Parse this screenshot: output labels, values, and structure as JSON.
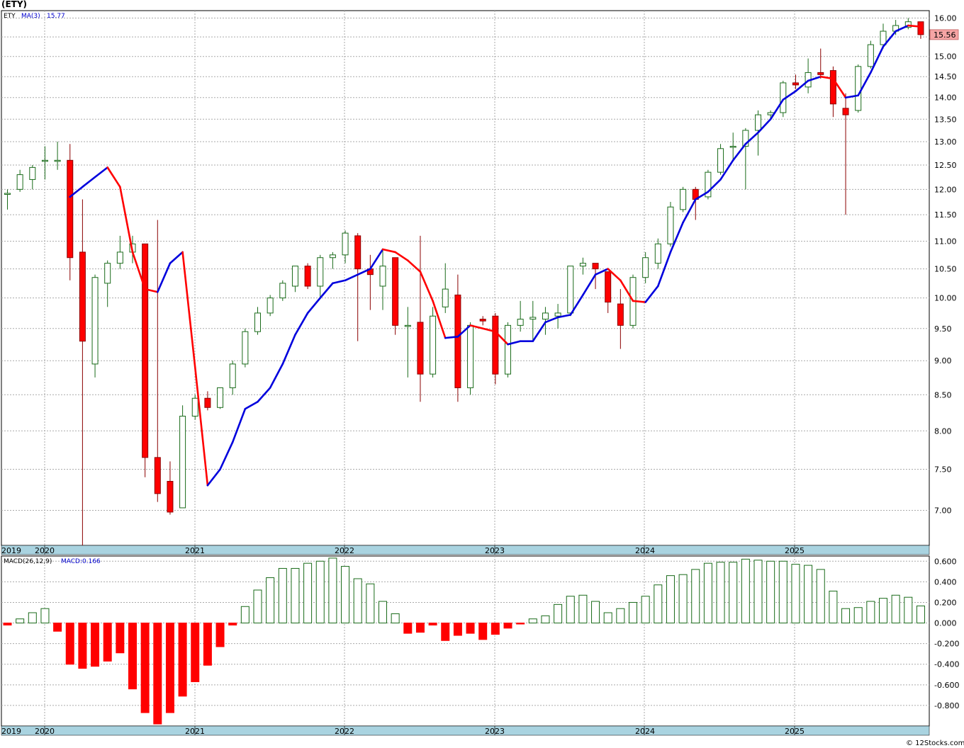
{
  "page": {
    "symbol_title": "(ETY)",
    "credit": "© 12Stocks.com"
  },
  "colors": {
    "up": "#1a6b1a",
    "down": "#ff0000",
    "ma_up": "#0000dd",
    "ma_down": "#ff0000",
    "axis_band": "#a9d3e0",
    "grid": "#aaaaaa",
    "last_price_tag": "#f6a5a5"
  },
  "chart_data": [
    {
      "type": "candlestick",
      "title": "",
      "symbol": "ETY",
      "overlay_label": "MA(3)",
      "overlay_value": "15.77",
      "last_price_label": "15.56",
      "y_scale": "log",
      "ylim": [
        6.6,
        16.2
      ],
      "y_ticks": [
        "7.00",
        "7.50",
        "8.00",
        "8.50",
        "9.00",
        "9.50",
        "10.00",
        "10.50",
        "11.00",
        "11.50",
        "12.00",
        "12.50",
        "13.00",
        "13.50",
        "14.00",
        "14.50",
        "15.00",
        "15.50",
        "16.00"
      ],
      "x_year_labels": [
        "2019",
        "2020",
        "2021",
        "2022",
        "2023",
        "2024",
        "2025"
      ],
      "grid": true,
      "series": [
        {
          "name": "ETY",
          "fields": [
            "open",
            "high",
            "low",
            "close"
          ],
          "values": [
            [
              11.9,
              12.0,
              11.6,
              11.92
            ],
            [
              12.0,
              12.4,
              11.95,
              12.3
            ],
            [
              12.2,
              12.5,
              12.0,
              12.45
            ],
            [
              12.6,
              12.9,
              12.2,
              12.6
            ],
            [
              12.6,
              13.0,
              12.4,
              12.6
            ],
            [
              12.6,
              12.95,
              10.3,
              10.7
            ],
            [
              10.8,
              11.8,
              6.6,
              9.3
            ],
            [
              8.95,
              10.4,
              8.75,
              10.35
            ],
            [
              10.25,
              10.65,
              9.85,
              10.6
            ],
            [
              10.6,
              11.1,
              10.5,
              10.8
            ],
            [
              10.8,
              11.1,
              10.6,
              10.95
            ],
            [
              10.95,
              10.95,
              7.4,
              7.65
            ],
            [
              7.65,
              11.4,
              7.1,
              7.2
            ],
            [
              7.35,
              7.6,
              6.95,
              6.98
            ],
            [
              7.03,
              8.35,
              7.03,
              8.2
            ],
            [
              8.2,
              8.5,
              8.15,
              8.45
            ],
            [
              8.45,
              8.55,
              8.28,
              8.32
            ],
            [
              8.32,
              8.6,
              8.3,
              8.6
            ],
            [
              8.6,
              9.0,
              8.5,
              8.95
            ],
            [
              8.95,
              9.5,
              8.9,
              9.45
            ],
            [
              9.45,
              9.85,
              9.4,
              9.75
            ],
            [
              9.75,
              10.05,
              9.7,
              10.0
            ],
            [
              10.0,
              10.3,
              9.95,
              10.25
            ],
            [
              10.2,
              10.55,
              10.1,
              10.55
            ],
            [
              10.55,
              10.6,
              10.15,
              10.2
            ],
            [
              10.2,
              10.75,
              10.0,
              10.7
            ],
            [
              10.7,
              10.8,
              10.5,
              10.75
            ],
            [
              10.75,
              11.2,
              10.6,
              11.15
            ],
            [
              11.1,
              11.15,
              9.3,
              10.5
            ],
            [
              10.5,
              10.75,
              9.8,
              10.4
            ],
            [
              10.2,
              10.85,
              9.8,
              10.55
            ],
            [
              10.7,
              10.7,
              9.4,
              9.55
            ],
            [
              9.55,
              9.85,
              8.75,
              9.55
            ],
            [
              9.6,
              11.1,
              8.4,
              8.8
            ],
            [
              8.8,
              9.85,
              8.75,
              9.7
            ],
            [
              9.85,
              10.6,
              9.75,
              10.15
            ],
            [
              10.05,
              10.4,
              8.4,
              8.6
            ],
            [
              8.6,
              9.6,
              8.5,
              9.55
            ],
            [
              9.65,
              9.7,
              9.55,
              9.62
            ],
            [
              9.7,
              9.75,
              8.65,
              8.8
            ],
            [
              8.8,
              9.6,
              8.75,
              9.55
            ],
            [
              9.55,
              9.95,
              9.45,
              9.65
            ],
            [
              9.65,
              9.95,
              9.3,
              9.68
            ],
            [
              9.65,
              9.85,
              9.4,
              9.75
            ],
            [
              9.7,
              9.9,
              9.5,
              9.75
            ],
            [
              9.75,
              10.55,
              9.7,
              10.55
            ],
            [
              10.55,
              10.7,
              10.4,
              10.6
            ],
            [
              10.6,
              10.6,
              10.15,
              10.5
            ],
            [
              10.45,
              10.45,
              9.75,
              9.93
            ],
            [
              9.9,
              10.15,
              9.18,
              9.55
            ],
            [
              9.55,
              10.4,
              9.5,
              10.35
            ],
            [
              10.35,
              10.8,
              10.25,
              10.7
            ],
            [
              10.6,
              11.05,
              10.5,
              10.95
            ],
            [
              10.95,
              11.75,
              10.9,
              11.65
            ],
            [
              11.6,
              12.05,
              11.55,
              12.0
            ],
            [
              12.0,
              12.05,
              11.4,
              11.8
            ],
            [
              11.85,
              12.4,
              11.8,
              12.35
            ],
            [
              12.35,
              12.95,
              12.3,
              12.85
            ],
            [
              12.9,
              13.2,
              12.6,
              12.9
            ],
            [
              12.9,
              13.3,
              12.0,
              13.25
            ],
            [
              13.25,
              13.7,
              12.7,
              13.6
            ],
            [
              13.6,
              13.7,
              13.5,
              13.65
            ],
            [
              13.65,
              14.4,
              13.55,
              14.35
            ],
            [
              14.35,
              14.55,
              14.2,
              14.3
            ],
            [
              14.25,
              14.95,
              14.1,
              14.6
            ],
            [
              14.6,
              15.2,
              14.45,
              14.55
            ],
            [
              14.65,
              14.75,
              13.55,
              13.85
            ],
            [
              13.75,
              14.1,
              11.5,
              13.6
            ],
            [
              13.7,
              14.8,
              13.65,
              14.75
            ],
            [
              14.75,
              15.4,
              14.7,
              15.3
            ],
            [
              15.3,
              15.85,
              15.2,
              15.65
            ],
            [
              15.65,
              15.95,
              15.55,
              15.8
            ],
            [
              15.75,
              16.0,
              15.7,
              15.9
            ],
            [
              15.9,
              15.9,
              15.45,
              15.56
            ]
          ]
        },
        {
          "name": "MA(3)",
          "values": [
            11.85,
            12.05,
            12.25,
            12.45,
            12.05,
            10.8,
            10.15,
            10.1,
            10.6,
            10.8,
            8.9,
            7.3,
            7.5,
            7.85,
            8.3,
            8.4,
            8.6,
            8.95,
            9.4,
            9.75,
            10.0,
            10.25,
            10.3,
            10.4,
            10.5,
            10.85,
            10.8,
            10.65,
            10.45,
            9.95,
            9.35,
            9.37,
            9.55,
            9.5,
            9.45,
            9.25,
            9.3,
            9.3,
            9.6,
            9.68,
            9.72,
            10.05,
            10.4,
            10.5,
            10.3,
            9.95,
            9.93,
            10.2,
            10.8,
            11.35,
            11.8,
            11.95,
            12.2,
            12.6,
            12.95,
            13.2,
            13.5,
            13.95,
            14.15,
            14.4,
            14.5,
            14.45,
            14.0,
            14.05,
            14.6,
            15.25,
            15.65,
            15.8,
            15.77
          ]
        }
      ]
    },
    {
      "type": "bar",
      "title": "",
      "overlay_label": "MACD(26,12,9)",
      "overlay_value": "MACD:0.166",
      "ylim": [
        -1.0,
        0.65
      ],
      "y_ticks": [
        "0.600",
        "0.400",
        "0.200",
        "0.000",
        "-0.200",
        "-0.400",
        "-0.600",
        "-0.800"
      ],
      "x_year_labels": [
        "2019",
        "2020",
        "2021",
        "2022",
        "2023",
        "2024",
        "2025"
      ],
      "grid": true,
      "series": [
        {
          "name": "MACD",
          "values": [
            -0.02,
            0.04,
            0.1,
            0.14,
            -0.08,
            -0.4,
            -0.44,
            -0.42,
            -0.37,
            -0.29,
            -0.64,
            -0.87,
            -0.98,
            -0.87,
            -0.71,
            -0.57,
            -0.41,
            -0.23,
            -0.02,
            0.16,
            0.32,
            0.44,
            0.53,
            0.53,
            0.58,
            0.6,
            0.63,
            0.55,
            0.43,
            0.38,
            0.21,
            0.09,
            -0.1,
            -0.09,
            -0.02,
            -0.17,
            -0.12,
            -0.1,
            -0.16,
            -0.11,
            -0.05,
            -0.01,
            0.04,
            0.07,
            0.18,
            0.26,
            0.27,
            0.21,
            0.1,
            0.14,
            0.2,
            0.26,
            0.37,
            0.46,
            0.47,
            0.52,
            0.58,
            0.59,
            0.59,
            0.62,
            0.61,
            0.6,
            0.6,
            0.57,
            0.56,
            0.52,
            0.31,
            0.14,
            0.15,
            0.21,
            0.24,
            0.27,
            0.25,
            0.166
          ]
        }
      ]
    }
  ]
}
